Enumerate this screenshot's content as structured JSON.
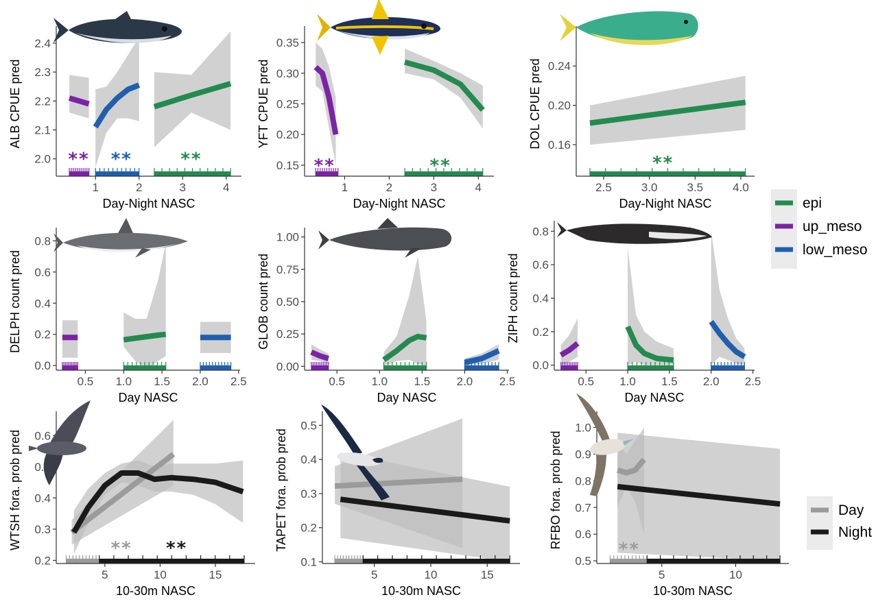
{
  "colors": {
    "epi": "#238B4F",
    "up_meso": "#7B23A6",
    "low_meso": "#1F5FAE",
    "day": "#9B9B9B",
    "night": "#1A1A1A",
    "ribbon": "#BEBEBE",
    "axis": "#333333"
  },
  "legend_zone": {
    "entries": [
      {
        "key": "epi",
        "label": "epi"
      },
      {
        "key": "up_meso",
        "label": "up_meso"
      },
      {
        "key": "low_meso",
        "label": "low_meso"
      }
    ]
  },
  "legend_period": {
    "entries": [
      {
        "key": "day",
        "label": "Day"
      },
      {
        "key": "night",
        "label": "Night"
      }
    ]
  },
  "chart_data": [
    {
      "id": "alb",
      "type": "line",
      "icon": "tuna-icon",
      "xlabel": "Day-Night NASC",
      "ylabel": "ALB CPUE pred",
      "xlim": [
        0.1,
        4.35
      ],
      "ylim": [
        1.94,
        2.44
      ],
      "xticks": [
        1,
        2,
        3,
        4
      ],
      "yticks": [
        2.0,
        2.1,
        2.2,
        2.3,
        2.4
      ],
      "ytick_labels": [
        "2.0",
        "2.1",
        "2.2",
        "2.3",
        "2.4"
      ],
      "series": [
        {
          "name": "up_meso",
          "color_key": "up_meso",
          "x": [
            0.4,
            0.85
          ],
          "y": [
            2.21,
            2.19
          ],
          "lo": [
            2.16,
            2.14
          ],
          "hi": [
            2.29,
            2.28
          ]
        },
        {
          "name": "low_meso",
          "color_key": "low_meso",
          "x": [
            1.0,
            1.25,
            1.5,
            1.75,
            2.0
          ],
          "y": [
            2.11,
            2.17,
            2.21,
            2.24,
            2.255
          ],
          "lo": [
            1.97,
            2.09,
            2.14,
            2.14,
            2.13
          ],
          "hi": [
            2.24,
            2.25,
            2.3,
            2.36,
            2.42
          ]
        },
        {
          "name": "epi",
          "color_key": "epi",
          "x": [
            2.35,
            3.2,
            4.1
          ],
          "y": [
            2.18,
            2.22,
            2.26
          ],
          "lo": [
            2.04,
            2.16,
            2.1
          ],
          "hi": [
            2.3,
            2.29,
            2.44
          ]
        }
      ],
      "rugs": [
        {
          "color_key": "up_meso",
          "x_from": 0.4,
          "x_to": 0.85
        },
        {
          "color_key": "low_meso",
          "x_from": 1.0,
          "x_to": 2.0
        },
        {
          "color_key": "epi",
          "x_from": 2.35,
          "x_to": 4.1
        }
      ],
      "significance": [
        {
          "text": "**",
          "x": 0.62,
          "y": 2.0,
          "color_key": "up_meso"
        },
        {
          "text": "**",
          "x": 1.6,
          "y": 2.0,
          "color_key": "low_meso"
        },
        {
          "text": "**",
          "x": 3.2,
          "y": 2.0,
          "color_key": "epi"
        }
      ]
    },
    {
      "id": "yft",
      "type": "line",
      "icon": "yellowfin-tuna-icon",
      "xlabel": "Day-Night NASC",
      "ylabel": "YFT CPUE pred",
      "xlim": [
        0.1,
        4.35
      ],
      "ylim": [
        0.132,
        0.368
      ],
      "xticks": [
        1,
        2,
        3,
        4
      ],
      "yticks": [
        0.15,
        0.2,
        0.25,
        0.3,
        0.35
      ],
      "ytick_labels": [
        "0.15",
        "0.20",
        "0.25",
        "0.30",
        "0.35"
      ],
      "series": [
        {
          "name": "up_meso",
          "color_key": "up_meso",
          "x": [
            0.35,
            0.5,
            0.65,
            0.8
          ],
          "y": [
            0.31,
            0.3,
            0.26,
            0.2
          ],
          "lo": [
            0.28,
            0.27,
            0.21,
            0.15
          ],
          "hi": [
            0.35,
            0.34,
            0.31,
            0.26
          ]
        },
        {
          "name": "epi",
          "color_key": "epi",
          "x": [
            2.35,
            3.0,
            3.6,
            4.1
          ],
          "y": [
            0.318,
            0.305,
            0.282,
            0.24
          ],
          "lo": [
            0.3,
            0.29,
            0.26,
            0.21
          ],
          "hi": [
            0.34,
            0.32,
            0.3,
            0.28
          ]
        }
      ],
      "rugs": [
        {
          "color_key": "up_meso",
          "x_from": 0.35,
          "x_to": 0.85
        },
        {
          "color_key": "epi",
          "x_from": 2.35,
          "x_to": 4.1
        }
      ],
      "significance": [
        {
          "text": "**",
          "x": 0.55,
          "y": 0.15,
          "color_key": "up_meso"
        },
        {
          "text": "**",
          "x": 3.15,
          "y": 0.15,
          "color_key": "epi"
        }
      ]
    },
    {
      "id": "dol",
      "type": "line",
      "icon": "mahi-mahi-icon",
      "xlabel": "Day-Night NASC",
      "ylabel": "DOL CPUE pred",
      "xlim": [
        2.2,
        4.15
      ],
      "ylim": [
        0.128,
        0.275
      ],
      "xticks": [
        2.5,
        3.0,
        3.5,
        4.0
      ],
      "yticks": [
        0.16,
        0.2,
        0.24
      ],
      "xtick_labels": [
        "2.5",
        "3.0",
        "3.5",
        "4.0"
      ],
      "ytick_labels": [
        "0.16",
        "0.20",
        "0.24"
      ],
      "series": [
        {
          "name": "epi",
          "color_key": "epi",
          "x": [
            2.35,
            4.05
          ],
          "y": [
            0.182,
            0.203
          ],
          "lo": [
            0.16,
            0.175
          ],
          "hi": [
            0.2,
            0.23
          ]
        }
      ],
      "rugs": [
        {
          "color_key": "epi",
          "x_from": 2.35,
          "x_to": 4.05
        }
      ],
      "significance": [
        {
          "text": "**",
          "x": 3.15,
          "y": 0.142,
          "color_key": "epi"
        }
      ]
    },
    {
      "id": "delph",
      "type": "line",
      "icon": "dolphin-icon",
      "xlabel": "Day NASC",
      "ylabel": "DELPH count pred",
      "xlim": [
        0.12,
        2.52
      ],
      "ylim": [
        -0.03,
        0.85
      ],
      "xticks": [
        0.5,
        1.0,
        1.5,
        2.0,
        2.5
      ],
      "yticks": [
        0.0,
        0.2,
        0.4,
        0.6,
        0.8
      ],
      "xtick_labels": [
        "0.5",
        "1.0",
        "1.5",
        "2.0",
        "2.5"
      ],
      "ytick_labels": [
        "0.0",
        "0.2",
        "0.4",
        "0.6",
        "0.8"
      ],
      "series": [
        {
          "name": "up_meso",
          "color_key": "up_meso",
          "x": [
            0.2,
            0.4
          ],
          "y": [
            0.18,
            0.18
          ],
          "lo": [
            0.05,
            0.05
          ],
          "hi": [
            0.29,
            0.29
          ]
        },
        {
          "name": "epi",
          "color_key": "epi",
          "x": [
            1.0,
            1.15,
            1.3,
            1.45,
            1.55
          ],
          "y": [
            0.165,
            0.175,
            0.185,
            0.195,
            0.2
          ],
          "lo": [
            0.12,
            0.03,
            -0.02,
            0.03,
            0.06
          ],
          "hi": [
            0.34,
            0.3,
            0.3,
            0.55,
            0.78
          ]
        },
        {
          "name": "low_meso",
          "color_key": "low_meso",
          "x": [
            2.0,
            2.4
          ],
          "y": [
            0.18,
            0.18
          ],
          "lo": [
            0.08,
            0.08
          ],
          "hi": [
            0.28,
            0.28
          ]
        }
      ],
      "rugs": [
        {
          "color_key": "up_meso",
          "x_from": 0.2,
          "x_to": 0.4
        },
        {
          "color_key": "epi",
          "x_from": 1.0,
          "x_to": 1.55
        },
        {
          "color_key": "low_meso",
          "x_from": 2.0,
          "x_to": 2.4
        }
      ],
      "significance": []
    },
    {
      "id": "glob",
      "type": "line",
      "icon": "pilot-whale-icon",
      "xlabel": "Day NASC",
      "ylabel": "GLOB count pred",
      "xlim": [
        0.12,
        2.52
      ],
      "ylim": [
        -0.03,
        1.03
      ],
      "xticks": [
        0.5,
        1.0,
        1.5,
        2.0,
        2.5
      ],
      "yticks": [
        0.0,
        0.25,
        0.5,
        0.75,
        1.0
      ],
      "xtick_labels": [
        "0.5",
        "1.0",
        "1.5",
        "2.0",
        "2.5"
      ],
      "ytick_labels": [
        "0.00",
        "0.25",
        "0.50",
        "0.75",
        "1.00"
      ],
      "series": [
        {
          "name": "up_meso",
          "color_key": "up_meso",
          "x": [
            0.2,
            0.3,
            0.4
          ],
          "y": [
            0.11,
            0.08,
            0.06
          ],
          "lo": [
            0.05,
            0.04,
            0.02
          ],
          "hi": [
            0.17,
            0.13,
            0.1
          ]
        },
        {
          "name": "epi",
          "color_key": "epi",
          "x": [
            1.05,
            1.2,
            1.35,
            1.45,
            1.55
          ],
          "y": [
            0.05,
            0.12,
            0.2,
            0.23,
            0.22
          ],
          "lo": [
            0.0,
            0.04,
            0.05,
            0.02,
            0.0
          ],
          "hi": [
            0.11,
            0.23,
            0.55,
            0.85,
            0.35
          ]
        },
        {
          "name": "low_meso",
          "color_key": "low_meso",
          "x": [
            2.0,
            2.2,
            2.4
          ],
          "y": [
            0.03,
            0.06,
            0.12
          ],
          "lo": [
            0.0,
            0.02,
            0.05
          ],
          "hi": [
            0.06,
            0.1,
            0.17
          ]
        }
      ],
      "rugs": [
        {
          "color_key": "up_meso",
          "x_from": 0.2,
          "x_to": 0.4
        },
        {
          "color_key": "epi",
          "x_from": 1.05,
          "x_to": 1.55
        },
        {
          "color_key": "low_meso",
          "x_from": 2.0,
          "x_to": 2.4
        }
      ],
      "significance": []
    },
    {
      "id": "ziph",
      "type": "line",
      "icon": "beaked-whale-icon",
      "xlabel": "Day NASC",
      "ylabel": "ZIPH count pred",
      "xlim": [
        0.12,
        2.52
      ],
      "ylim": [
        -0.03,
        0.83
      ],
      "xticks": [
        0.5,
        1.0,
        1.5,
        2.0,
        2.5
      ],
      "yticks": [
        0.0,
        0.2,
        0.4,
        0.6,
        0.8
      ],
      "xtick_labels": [
        "0.5",
        "1.0",
        "1.5",
        "2.0",
        "2.5"
      ],
      "ytick_labels": [
        "0.0",
        "0.2",
        "0.4",
        "0.6",
        "0.8"
      ],
      "series": [
        {
          "name": "up_meso",
          "color_key": "up_meso",
          "x": [
            0.2,
            0.3,
            0.4
          ],
          "y": [
            0.06,
            0.09,
            0.13
          ],
          "lo": [
            0.0,
            0.02,
            0.05
          ],
          "hi": [
            0.12,
            0.18,
            0.28
          ]
        },
        {
          "name": "epi",
          "color_key": "epi",
          "x": [
            1.0,
            1.1,
            1.2,
            1.35,
            1.55
          ],
          "y": [
            0.23,
            0.12,
            0.07,
            0.04,
            0.03
          ],
          "lo": [
            0.0,
            0.02,
            0.0,
            0.0,
            0.0
          ],
          "hi": [
            0.7,
            0.3,
            0.2,
            0.14,
            0.1
          ]
        },
        {
          "name": "low_meso",
          "color_key": "low_meso",
          "x": [
            2.0,
            2.1,
            2.2,
            2.3,
            2.4
          ],
          "y": [
            0.26,
            0.19,
            0.13,
            0.08,
            0.05
          ],
          "lo": [
            0.0,
            0.05,
            0.03,
            0.01,
            0.0
          ],
          "hi": [
            0.8,
            0.45,
            0.28,
            0.16,
            0.1
          ]
        }
      ],
      "rugs": [
        {
          "color_key": "up_meso",
          "x_from": 0.2,
          "x_to": 0.4
        },
        {
          "color_key": "epi",
          "x_from": 1.0,
          "x_to": 1.55
        },
        {
          "color_key": "low_meso",
          "x_from": 2.0,
          "x_to": 2.4
        }
      ],
      "significance": []
    },
    {
      "id": "wtsh",
      "type": "line",
      "icon": "shearwater-icon",
      "xlabel": "10-30m NASC",
      "ylabel": "WTSH fora. prob pred",
      "xlim": [
        0.6,
        18.6
      ],
      "ylim": [
        0.19,
        0.66
      ],
      "xticks": [
        5,
        10,
        15
      ],
      "yticks": [
        0.2,
        0.3,
        0.4,
        0.5,
        0.6
      ],
      "ytick_labels": [
        "0.2",
        "0.3",
        "0.4",
        "0.5",
        "0.6"
      ],
      "series": [
        {
          "name": "Day",
          "color_key": "day",
          "x": [
            2.0,
            11.2
          ],
          "y": [
            0.29,
            0.54
          ],
          "lo": [
            0.25,
            0.44
          ],
          "hi": [
            0.33,
            0.65
          ]
        },
        {
          "name": "Night",
          "color_key": "night",
          "x": [
            2.2,
            3.5,
            5.0,
            6.5,
            8.0,
            9.5,
            11.0,
            13.0,
            15.0,
            17.5
          ],
          "y": [
            0.29,
            0.37,
            0.44,
            0.48,
            0.48,
            0.46,
            0.465,
            0.46,
            0.45,
            0.42
          ],
          "lo": [
            0.22,
            0.32,
            0.41,
            0.45,
            0.44,
            0.42,
            0.42,
            0.41,
            0.38,
            0.32
          ],
          "hi": [
            0.36,
            0.43,
            0.48,
            0.51,
            0.52,
            0.5,
            0.51,
            0.51,
            0.51,
            0.52
          ]
        }
      ],
      "rugs": [
        {
          "color_key": "day",
          "x_from": 1.5,
          "x_to": 4.5
        },
        {
          "color_key": "night",
          "x_from": 4.5,
          "x_to": 17.6
        }
      ],
      "significance": [
        {
          "text": "**",
          "x": 6.5,
          "y": 0.24,
          "color_key": "day"
        },
        {
          "text": "**",
          "x": 11.5,
          "y": 0.24,
          "color_key": "night"
        }
      ]
    },
    {
      "id": "tapet",
      "type": "line",
      "icon": "petrel-icon",
      "xlabel": "10-30m NASC",
      "ylabel": "TAPET fora. prob pred",
      "xlim": [
        0.4,
        17.9
      ],
      "ylim": [
        0.095,
        0.525
      ],
      "xticks": [
        5,
        10,
        15
      ],
      "yticks": [
        0.1,
        0.2,
        0.3,
        0.4,
        0.5
      ],
      "ytick_labels": [
        "0.1",
        "0.2",
        "0.3",
        "0.4",
        "0.5"
      ],
      "series": [
        {
          "name": "Day",
          "color_key": "day",
          "x": [
            1.5,
            12.8
          ],
          "y": [
            0.322,
            0.342
          ],
          "lo": [
            0.27,
            0.14
          ],
          "hi": [
            0.38,
            0.52
          ]
        },
        {
          "name": "Night",
          "color_key": "night",
          "x": [
            2.0,
            17.0
          ],
          "y": [
            0.283,
            0.22
          ],
          "lo": [
            0.17,
            0.1
          ],
          "hi": [
            0.42,
            0.32
          ]
        }
      ],
      "rugs": [
        {
          "color_key": "day",
          "x_from": 1.5,
          "x_to": 4.0
        },
        {
          "color_key": "night",
          "x_from": 4.0,
          "x_to": 17.0
        }
      ],
      "significance": []
    },
    {
      "id": "rfbo",
      "type": "line",
      "icon": "booby-icon",
      "xlabel": "10-30m NASC",
      "ylabel": "RFBO fora. prob pred",
      "xlim": [
        0.6,
        13.6
      ],
      "ylim": [
        0.49,
        1.04
      ],
      "xticks": [
        5,
        10
      ],
      "yticks": [
        0.5,
        0.6,
        0.7,
        0.8,
        0.9,
        1.0
      ],
      "ytick_labels": [
        "0.5",
        "0.6",
        "0.7",
        "0.8",
        "0.9",
        "1.0"
      ],
      "series": [
        {
          "name": "Day",
          "color_key": "day",
          "x": [
            2.0,
            2.6,
            3.2,
            3.8
          ],
          "y": [
            0.84,
            0.83,
            0.84,
            0.88
          ],
          "lo": [
            0.7,
            0.78,
            0.72,
            0.6
          ],
          "hi": [
            0.95,
            0.9,
            0.95,
            1.0
          ]
        },
        {
          "name": "Night",
          "color_key": "night",
          "x": [
            2.0,
            13.0
          ],
          "y": [
            0.778,
            0.713
          ],
          "lo": [
            0.53,
            0.5
          ],
          "hi": [
            0.98,
            0.92
          ]
        }
      ],
      "rugs": [
        {
          "color_key": "day",
          "x_from": 1.5,
          "x_to": 4.0
        },
        {
          "color_key": "night",
          "x_from": 4.0,
          "x_to": 13.0
        }
      ],
      "significance": [
        {
          "text": "**",
          "x": 2.8,
          "y": 0.545,
          "color_key": "day"
        }
      ]
    }
  ]
}
